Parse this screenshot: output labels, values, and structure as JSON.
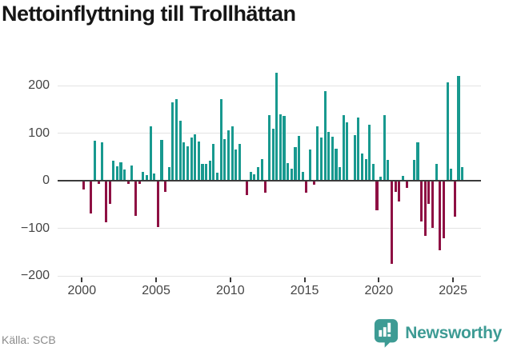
{
  "title": "Nettoinflyttning till Trollhättan",
  "footer": {
    "source_label": "Källa: SCB",
    "brand": "Newsworthy"
  },
  "colors": {
    "positive_bar": "#18998f",
    "negative_bar": "#8e1043",
    "brand_teal": "#3d9b94",
    "grid": "#e3e3e3",
    "zero_line": "#3b3b3b",
    "axis_text": "#454545",
    "source_text": "#8b8b8b"
  },
  "icons": {
    "brand_badge": "newsworthy-bar-chart-badge"
  },
  "chart_data": {
    "type": "bar",
    "title": "Nettoinflyttning till Trollhättan",
    "xlabel": "",
    "ylabel": "",
    "legend": "none",
    "grid": "horizontal",
    "ylim": [
      -200,
      240
    ],
    "y_ticks": [
      200,
      100,
      0,
      -100,
      -200
    ],
    "y_tick_labels": [
      "200",
      "100",
      "0",
      "−100",
      "−200"
    ],
    "x_ticks": [
      2000,
      2005,
      2010,
      2015,
      2020,
      2025
    ],
    "x_tick_labels": [
      "2000",
      "2005",
      "2010",
      "2015",
      "2020",
      "2025"
    ],
    "frequency": "quarterly",
    "start_period": "2000Q1",
    "end_period": "2025Q3",
    "values": [
      -18,
      0,
      -69,
      84,
      -6,
      81,
      -88,
      -48,
      42,
      31,
      39,
      24,
      -6,
      32,
      -74,
      -7,
      19,
      12,
      114,
      15,
      -97,
      86,
      -24,
      29,
      164,
      172,
      126,
      80,
      72,
      91,
      98,
      82,
      36,
      35,
      42,
      78,
      16,
      172,
      88,
      106,
      114,
      65,
      78,
      0,
      -31,
      19,
      13,
      28,
      45,
      -26,
      138,
      109,
      227,
      140,
      136,
      37,
      25,
      71,
      94,
      18,
      -26,
      65,
      -9,
      114,
      90,
      189,
      102,
      92,
      68,
      28,
      138,
      122,
      0,
      96,
      133,
      57,
      46,
      118,
      36,
      -63,
      8,
      137,
      43,
      -175,
      -24,
      -44,
      10,
      -15,
      0,
      43,
      81,
      -86,
      -116,
      -48,
      -99,
      36,
      -147,
      -121,
      206,
      25,
      -75,
      220,
      28
    ]
  }
}
